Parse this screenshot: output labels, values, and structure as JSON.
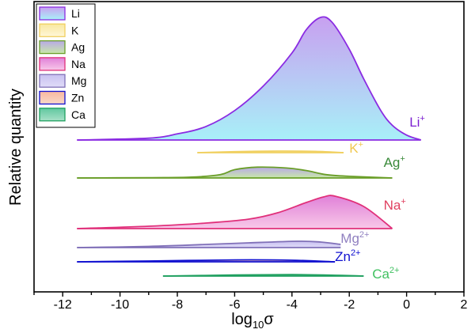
{
  "chart_data": {
    "type": "area",
    "title": "",
    "xlabel": "log",
    "xlabel_sub": "10",
    "xlabel_tail": "σ",
    "ylabel": "Relative quantity",
    "xlim": [
      -13,
      2
    ],
    "x_ticks": [
      -12,
      -10,
      -8,
      -6,
      -4,
      -2,
      0,
      2
    ],
    "x_tick_labels": [
      "-12",
      "-10",
      "-8",
      "-6",
      "-4",
      "-2",
      "0",
      "2"
    ],
    "grid": false,
    "legend": {
      "position": "top-left",
      "entries": [
        "Li",
        "K",
        "Ag",
        "Na",
        "Mg",
        "Zn",
        "Ca"
      ]
    },
    "series": [
      {
        "name": "Li",
        "label": "Li",
        "label_sup": "+",
        "color": "#8a2be2",
        "fill_top": "#c8a0f0",
        "fill_bottom": "#a8f0f8",
        "label_color": "#7b1fd1",
        "points": [
          [
            -11.5,
            0
          ],
          [
            -9,
            1.5
          ],
          [
            -8,
            5
          ],
          [
            -7,
            11
          ],
          [
            -6,
            24
          ],
          [
            -5,
            44
          ],
          [
            -4,
            71
          ],
          [
            -3.5,
            90
          ],
          [
            -3.0,
            100
          ],
          [
            -2.6,
            96
          ],
          [
            -2,
            74
          ],
          [
            -1.5,
            50
          ],
          [
            -0.9,
            24
          ],
          [
            -0.5,
            12
          ],
          [
            0,
            4
          ],
          [
            0.5,
            0
          ]
        ],
        "label_x": 0.1
      },
      {
        "name": "K",
        "label": "K",
        "label_sup": "+",
        "color": "#f0d060",
        "fill_top": "#f8e8a0",
        "fill_bottom": "#fff6d8",
        "label_color": "#f0c850",
        "points": [
          [
            -7.3,
            0
          ],
          [
            -6,
            0.6
          ],
          [
            -4.5,
            1.0
          ],
          [
            -3.2,
            0.8
          ],
          [
            -2.2,
            0
          ]
        ],
        "label_x": -2.0
      },
      {
        "name": "Ag",
        "label": "Ag",
        "label_sup": "+",
        "color": "#6a9e28",
        "fill_top": "#b8a8e8",
        "fill_bottom": "#c8e8a8",
        "label_color": "#3a8a3a",
        "points": [
          [
            -11.5,
            0
          ],
          [
            -9,
            0.4
          ],
          [
            -7.5,
            1.0
          ],
          [
            -6.5,
            4
          ],
          [
            -6.0,
            10
          ],
          [
            -5.2,
            13
          ],
          [
            -4.2,
            12
          ],
          [
            -3.5,
            9
          ],
          [
            -2.8,
            4
          ],
          [
            -2,
            2
          ],
          [
            -0.5,
            0
          ]
        ],
        "label_x": -0.8
      },
      {
        "name": "Na",
        "label": "Na",
        "label_sup": "+",
        "color": "#e0307a",
        "fill_top": "#e080d8",
        "fill_bottom": "#f8c8e8",
        "label_color": "#e04060",
        "points": [
          [
            -11.5,
            0
          ],
          [
            -9,
            3
          ],
          [
            -7,
            7
          ],
          [
            -5.5,
            12
          ],
          [
            -4.5,
            20
          ],
          [
            -3.5,
            33
          ],
          [
            -2.9,
            40
          ],
          [
            -2.5,
            41
          ],
          [
            -1.5,
            28
          ],
          [
            -0.5,
            0
          ]
        ],
        "label_x": -0.8
      },
      {
        "name": "Mg",
        "label": "Mg",
        "label_sup": "2+",
        "color": "#8070b8",
        "fill_top": "#c8c0f0",
        "fill_bottom": "#e0dcf8",
        "label_color": "#9080c0",
        "points": [
          [
            -11.5,
            0
          ],
          [
            -9,
            1.5
          ],
          [
            -7,
            4
          ],
          [
            -5.5,
            6
          ],
          [
            -3.8,
            8
          ],
          [
            -3.0,
            7
          ],
          [
            -2.3,
            4
          ]
        ],
        "label_x": -2.3
      },
      {
        "name": "Zn",
        "label": "Zn",
        "label_sup": "2+",
        "color": "#1010d0",
        "fill_top": "#f8b8a0",
        "fill_bottom": "#f8d8c8",
        "label_color": "#1010d0",
        "points": [
          [
            -11.5,
            0
          ],
          [
            -9,
            0.5
          ],
          [
            -6,
            1.2
          ],
          [
            -4,
            1.0
          ],
          [
            -2.5,
            0
          ]
        ],
        "label_x": -2.5
      },
      {
        "name": "Ca",
        "label": "Ca",
        "label_sup": "2+",
        "color": "#20a060",
        "fill_top": "#60c8a0",
        "fill_bottom": "#a8e0c8",
        "label_color": "#40c060",
        "points": [
          [
            -8.5,
            0
          ],
          [
            -6,
            0.8
          ],
          [
            -4,
            1.1
          ],
          [
            -2.5,
            0.6
          ],
          [
            -1.5,
            0
          ]
        ],
        "label_x": -1.2
      }
    ]
  }
}
